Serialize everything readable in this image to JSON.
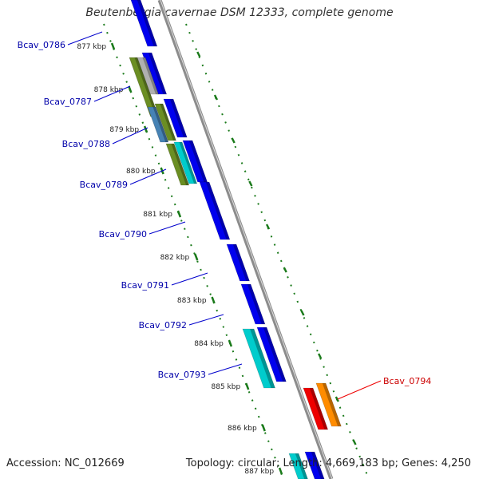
{
  "title": "Beutenbergia cavernae DSM 12333, complete genome",
  "accession_text": "Accession: NC_012669",
  "summary_text": "Topology: circular; Length: 4,669,183 bp; Genes: 4,250",
  "colors": {
    "backbone": "#8c8c8c",
    "tick": "#1a7a1a",
    "cds_blue": "#0000ee",
    "cds_cyan": "#00cccc",
    "olive": "#6b8e23",
    "steel": "#4682b4",
    "red": "#ee0000",
    "orange": "#ff8c00",
    "gene_label_blue": "#0000aa",
    "gene_label_red": "#cc0000"
  },
  "kbp_labels": [
    "877 kbp",
    "878 kbp",
    "879 kbp",
    "880 kbp",
    "881 kbp",
    "882 kbp",
    "883 kbp",
    "884 kbp",
    "885 kbp",
    "886 kbp",
    "887 kbp"
  ],
  "gene_labels": [
    {
      "text": "Bcav_0786",
      "color": "blue"
    },
    {
      "text": "Bcav_0787",
      "color": "blue"
    },
    {
      "text": "Bcav_0788",
      "color": "blue"
    },
    {
      "text": "Bcav_0789",
      "color": "blue"
    },
    {
      "text": "Bcav_0790",
      "color": "blue"
    },
    {
      "text": "Bcav_0791",
      "color": "blue"
    },
    {
      "text": "Bcav_0792",
      "color": "blue"
    },
    {
      "text": "Bcav_0793",
      "color": "blue"
    },
    {
      "text": "Bcav_0794",
      "color": "red"
    }
  ]
}
